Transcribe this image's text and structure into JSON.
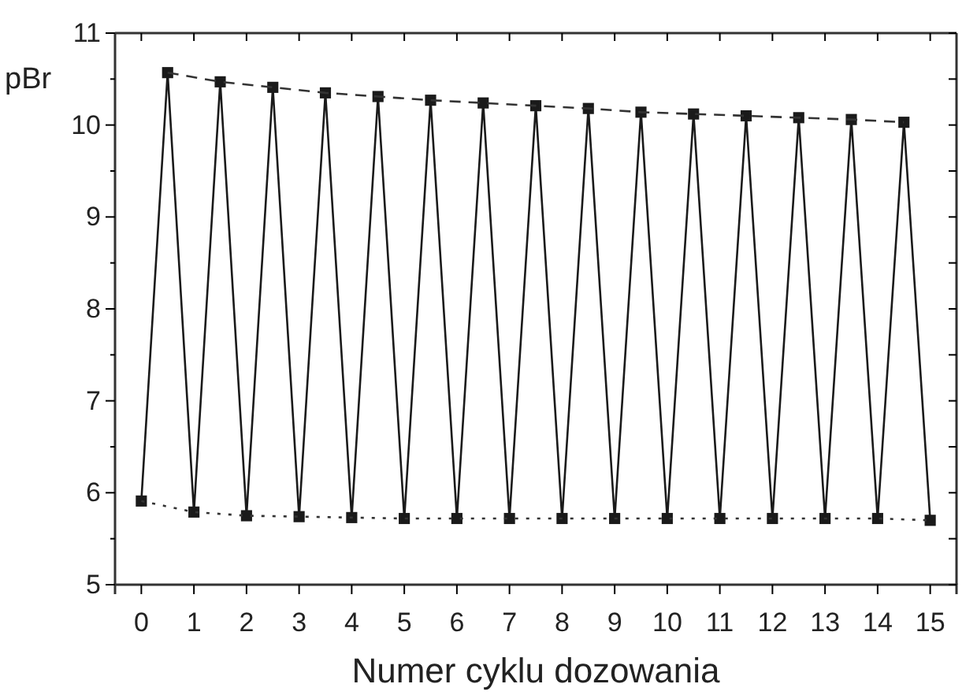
{
  "chart_data": {
    "type": "line",
    "xlabel": "Numer cyklu dozowania",
    "ylabel": "pBr",
    "xlim": [
      -0.5,
      15.5
    ],
    "xticks": [
      0,
      1,
      2,
      3,
      4,
      5,
      6,
      7,
      8,
      9,
      10,
      11,
      12,
      13,
      14,
      15
    ],
    "ylim": [
      5,
      11
    ],
    "yticks": [
      5,
      {
        "value": 5.5,
        "label": null
      },
      6,
      {
        "value": 6.5,
        "label": null
      },
      7,
      {
        "value": 7.5,
        "label": null
      },
      8,
      {
        "value": 8.5,
        "label": null
      },
      9,
      {
        "value": 9.5,
        "label": null
      },
      10,
      {
        "value": 10.5,
        "label": null
      },
      11
    ],
    "series": [
      {
        "color": "#1a1a1a",
        "marker": "square",
        "line_style": "solid",
        "x": [
          0,
          0.5,
          1,
          1.5,
          2,
          2.5,
          3,
          3.5,
          4,
          4.5,
          5,
          5.5,
          6,
          6.5,
          7,
          7.5,
          8,
          8.5,
          9,
          9.5,
          10,
          10.5,
          11,
          11.5,
          12,
          12.5,
          13,
          13.5,
          14,
          14.5,
          15
        ],
        "values": [
          5.91,
          10.57,
          5.79,
          10.47,
          5.75,
          10.41,
          5.74,
          10.35,
          5.73,
          10.31,
          5.72,
          10.27,
          5.72,
          10.24,
          5.72,
          10.21,
          5.72,
          10.18,
          5.72,
          10.14,
          5.72,
          10.12,
          5.72,
          10.1,
          5.72,
          10.08,
          5.72,
          10.06,
          5.72,
          10.03,
          5.7
        ]
      },
      {
        "color": "#333333",
        "marker": "none",
        "line_style": "dashed",
        "x": [
          0.5,
          1.5,
          2.5,
          3.5,
          4.5,
          5.5,
          6.5,
          7.5,
          8.5,
          9.5,
          10.5,
          11.5,
          12.5,
          13.5,
          14.5
        ],
        "values": [
          10.57,
          10.47,
          10.41,
          10.35,
          10.31,
          10.27,
          10.24,
          10.21,
          10.18,
          10.14,
          10.12,
          10.1,
          10.08,
          10.06,
          10.03
        ]
      },
      {
        "color": "#333333",
        "marker": "none",
        "line_style": "dotted",
        "x": [
          0,
          1,
          2,
          3,
          4,
          5,
          6,
          7,
          8,
          9,
          10,
          11,
          12,
          13,
          14,
          15
        ],
        "values": [
          5.91,
          5.79,
          5.75,
          5.74,
          5.73,
          5.72,
          5.72,
          5.72,
          5.72,
          5.72,
          5.72,
          5.72,
          5.72,
          5.72,
          5.72,
          5.7
        ]
      }
    ]
  }
}
